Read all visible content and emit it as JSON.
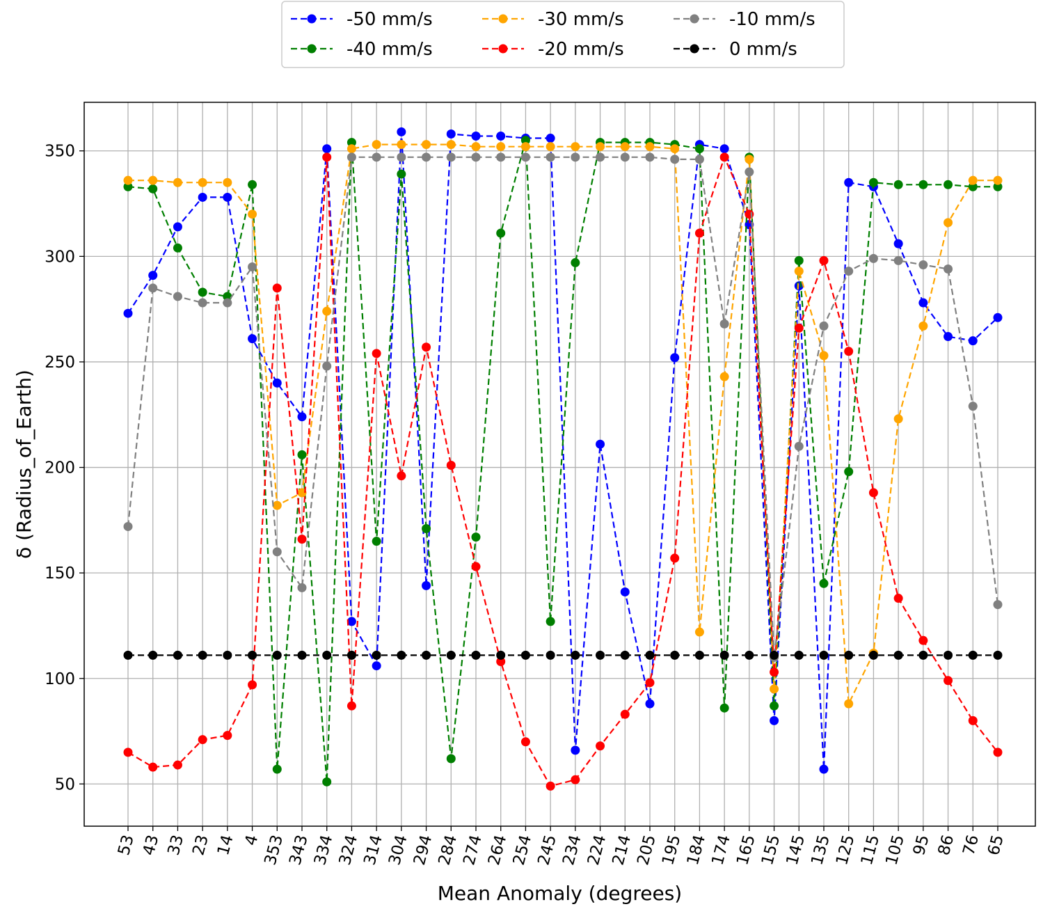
{
  "chart_data": {
    "type": "line",
    "xlabel": "Mean Anomaly (degrees)",
    "ylabel": "δ (Radius_of_Earth)",
    "x": [
      "53",
      "43",
      "33",
      "23",
      "14",
      "4",
      "353",
      "343",
      "334",
      "324",
      "314",
      "304",
      "294",
      "284",
      "274",
      "264",
      "254",
      "245",
      "234",
      "224",
      "214",
      "205",
      "195",
      "184",
      "174",
      "165",
      "155",
      "145",
      "135",
      "125",
      "115",
      "105",
      "95",
      "86",
      "76",
      "65"
    ],
    "yticks": [
      50,
      100,
      150,
      200,
      250,
      300,
      350
    ],
    "ylim": [
      30,
      373
    ],
    "grid": true,
    "legend_position": "top-center",
    "line_style": "dashed",
    "marker": "circle",
    "series": [
      {
        "name": "-50 mm/s",
        "color": "#0000ff",
        "values": [
          273,
          291,
          314,
          328,
          328,
          261,
          240,
          224,
          351,
          127,
          106,
          359,
          144,
          358,
          357,
          357,
          356,
          356,
          66,
          211,
          141,
          88,
          252,
          353,
          351,
          315,
          80,
          286,
          57,
          335,
          333,
          306,
          278,
          262,
          260,
          271
        ]
      },
      {
        "name": "-40 mm/s",
        "color": "#007f00",
        "values": [
          333,
          332,
          304,
          283,
          281,
          334,
          57,
          206,
          51,
          354,
          165,
          339,
          171,
          62,
          167,
          311,
          355,
          127,
          297,
          354,
          354,
          354,
          353,
          351,
          86,
          347,
          87,
          298,
          145,
          198,
          335,
          334,
          334,
          334,
          333,
          333
        ]
      },
      {
        "name": "-30 mm/s",
        "color": "#ffa500",
        "values": [
          336,
          336,
          335,
          335,
          335,
          320,
          182,
          188,
          274,
          351,
          353,
          353,
          353,
          353,
          352,
          352,
          352,
          352,
          352,
          352,
          352,
          352,
          351,
          122,
          243,
          346,
          95,
          293,
          253,
          88,
          112,
          223,
          267,
          316,
          336,
          336
        ]
      },
      {
        "name": "-20 mm/s",
        "color": "#ff0000",
        "values": [
          65,
          58,
          59,
          71,
          73,
          97,
          285,
          166,
          347,
          87,
          254,
          196,
          257,
          201,
          153,
          108,
          70,
          49,
          52,
          68,
          83,
          98,
          157,
          311,
          347,
          320,
          103,
          266,
          298,
          255,
          188,
          138,
          118,
          99,
          80,
          65
        ]
      },
      {
        "name": "-10 mm/s",
        "color": "#808080",
        "values": [
          172,
          285,
          281,
          278,
          278,
          295,
          160,
          143,
          248,
          347,
          347,
          347,
          347,
          347,
          347,
          347,
          347,
          347,
          347,
          347,
          347,
          347,
          346,
          346,
          268,
          340,
          110,
          210,
          267,
          293,
          299,
          298,
          296,
          294,
          229,
          135
        ]
      },
      {
        "name": "0 mm/s",
        "color": "#000000",
        "values": [
          111,
          111,
          111,
          111,
          111,
          111,
          111,
          111,
          111,
          111,
          111,
          111,
          111,
          111,
          111,
          111,
          111,
          111,
          111,
          111,
          111,
          111,
          111,
          111,
          111,
          111,
          111,
          111,
          111,
          111,
          111,
          111,
          111,
          111,
          111,
          111
        ]
      }
    ]
  }
}
